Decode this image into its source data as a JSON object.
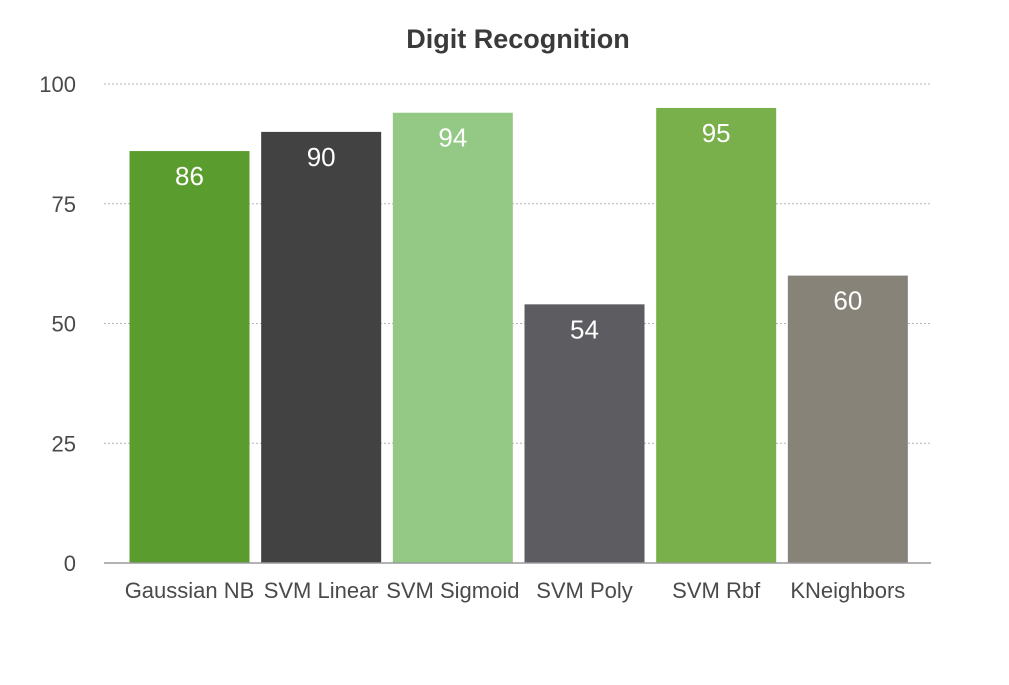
{
  "chart_data": {
    "type": "bar",
    "title": "Digit Recognition",
    "xlabel": "",
    "ylabel": "",
    "categories": [
      "Gaussian NB",
      "SVM Linear",
      "SVM Sigmoid",
      "SVM Poly",
      "SVM Rbf",
      "KNeighbors"
    ],
    "values": [
      86,
      90,
      94,
      54,
      95,
      60
    ],
    "data_labels": [
      "86",
      "90",
      "94",
      "54",
      "95",
      "60"
    ],
    "bar_colors": [
      "#5b9c2f",
      "#424242",
      "#93c985",
      "#5d5c61",
      "#79b04b",
      "#878379"
    ],
    "ylim": [
      0,
      100
    ],
    "yticks": [
      0,
      25,
      50,
      75,
      100
    ],
    "ytick_labels": [
      "0",
      "25",
      "50",
      "75",
      "100"
    ],
    "grid": true,
    "legend": "none"
  }
}
